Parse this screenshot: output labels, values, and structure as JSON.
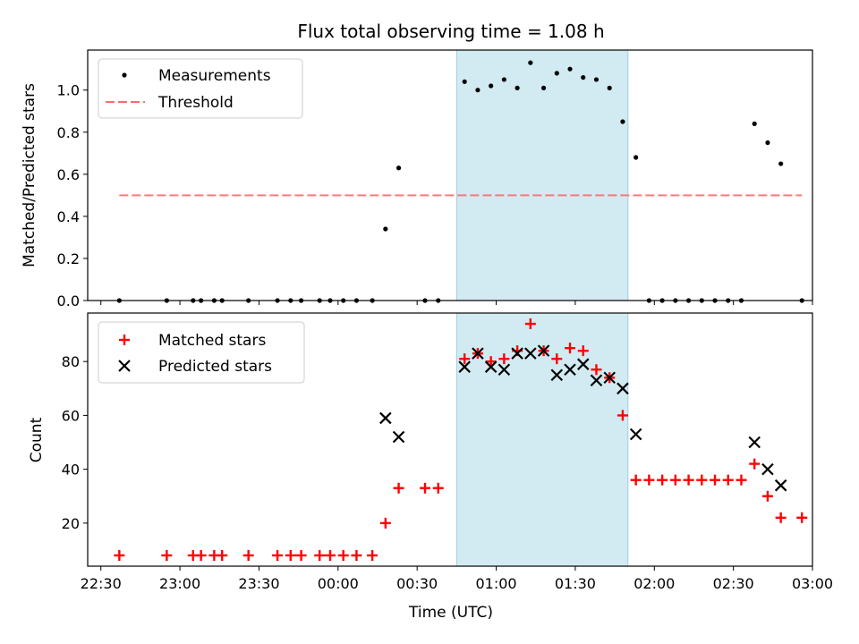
{
  "chart_data": [
    {
      "type": "scatter",
      "title": "Flux total observing time = 1.08 h",
      "xlabel": "",
      "ylabel": "Matched/Predicted stars",
      "xlim": [
        "22:25",
        "03:00"
      ],
      "ylim": [
        0,
        1.19
      ],
      "yticks": [
        0.0,
        0.2,
        0.4,
        0.6,
        0.8,
        1.0
      ],
      "yticklabels": [
        "0.0",
        "0.2",
        "0.4",
        "0.6",
        "0.8",
        "1.0"
      ],
      "shaded_interval": {
        "start": "00:45",
        "end": "01:50",
        "color": "#add8e6"
      },
      "legend": {
        "position": "top-left",
        "entries": [
          "Measurements",
          "Threshold"
        ]
      },
      "threshold": {
        "name": "Threshold",
        "value": 0.5,
        "x_start": "22:37",
        "x_end": "02:56",
        "color": "#ff6b6b"
      },
      "series": [
        {
          "name": "Measurements",
          "color": "#000000",
          "x": [
            "22:37",
            "22:55",
            "23:05",
            "23:08",
            "23:13",
            "23:16",
            "23:26",
            "23:37",
            "23:42",
            "23:46",
            "23:53",
            "23:57",
            "24:02",
            "24:07",
            "24:13",
            "24:18",
            "24:23",
            "24:33",
            "24:38",
            "24:48",
            "24:53",
            "24:58",
            "25:03",
            "25:08",
            "25:13",
            "25:18",
            "25:23",
            "25:28",
            "25:33",
            "25:38",
            "25:43",
            "25:48",
            "25:53",
            "25:58",
            "26:03",
            "26:08",
            "26:13",
            "26:18",
            "26:23",
            "26:28",
            "26:33",
            "26:38",
            "26:43",
            "26:48",
            "26:56"
          ],
          "y": [
            0,
            0,
            0,
            0,
            0,
            0,
            0,
            0,
            0,
            0,
            0,
            0,
            0,
            0,
            0,
            0.34,
            0.63,
            0,
            0,
            1.04,
            1.0,
            1.02,
            1.05,
            1.01,
            1.13,
            1.01,
            1.08,
            1.1,
            1.06,
            1.05,
            1.01,
            0.85,
            0.68,
            0,
            0,
            0,
            0,
            0,
            0,
            0,
            0,
            0.84,
            0.75,
            0.65,
            0
          ]
        }
      ]
    },
    {
      "type": "scatter",
      "title": "",
      "xlabel": "Time (UTC)",
      "ylabel": "Count",
      "xlim": [
        "22:25",
        "03:00"
      ],
      "ylim": [
        4,
        98
      ],
      "xticks": [
        "22:30",
        "23:00",
        "23:30",
        "00:00",
        "00:30",
        "01:00",
        "01:30",
        "02:00",
        "02:30",
        "03:00"
      ],
      "yticks": [
        20,
        40,
        60,
        80
      ],
      "yticklabels": [
        "20",
        "40",
        "60",
        "80"
      ],
      "shaded_interval": {
        "start": "00:45",
        "end": "01:50",
        "color": "#add8e6"
      },
      "legend": {
        "position": "top-left",
        "entries": [
          "Matched stars",
          "Predicted stars"
        ]
      },
      "series": [
        {
          "name": "Matched stars",
          "marker": "+",
          "color": "#ff0000",
          "x": [
            "22:37",
            "22:55",
            "23:05",
            "23:08",
            "23:13",
            "23:16",
            "23:26",
            "23:37",
            "23:42",
            "23:46",
            "23:53",
            "23:57",
            "24:02",
            "24:07",
            "24:13",
            "24:18",
            "24:23",
            "24:33",
            "24:38",
            "24:48",
            "24:53",
            "24:58",
            "25:03",
            "25:08",
            "25:13",
            "25:18",
            "25:23",
            "25:28",
            "25:33",
            "25:38",
            "25:43",
            "25:48",
            "25:53",
            "25:58",
            "26:03",
            "26:08",
            "26:13",
            "26:18",
            "26:23",
            "26:28",
            "26:33",
            "26:38",
            "26:43",
            "26:48",
            "26:56"
          ],
          "y": [
            8,
            8,
            8,
            8,
            8,
            8,
            8,
            8,
            8,
            8,
            8,
            8,
            8,
            8,
            8,
            20,
            33,
            33,
            33,
            81,
            83,
            80,
            81,
            84,
            94,
            84,
            81,
            85,
            84,
            77,
            74,
            60,
            36,
            36,
            36,
            36,
            36,
            36,
            36,
            36,
            36,
            42,
            30,
            22,
            22
          ]
        },
        {
          "name": "Predicted stars",
          "marker": "x",
          "color": "#000000",
          "x": [
            "24:18",
            "24:23",
            "24:48",
            "24:53",
            "24:58",
            "25:03",
            "25:08",
            "25:13",
            "25:18",
            "25:23",
            "25:28",
            "25:33",
            "25:38",
            "25:43",
            "25:48",
            "25:53",
            "26:38",
            "26:43",
            "26:48"
          ],
          "y": [
            59,
            52,
            78,
            83,
            78,
            77,
            83,
            83,
            84,
            75,
            77,
            79,
            73,
            74,
            70,
            53,
            50,
            40,
            34
          ]
        }
      ]
    }
  ]
}
